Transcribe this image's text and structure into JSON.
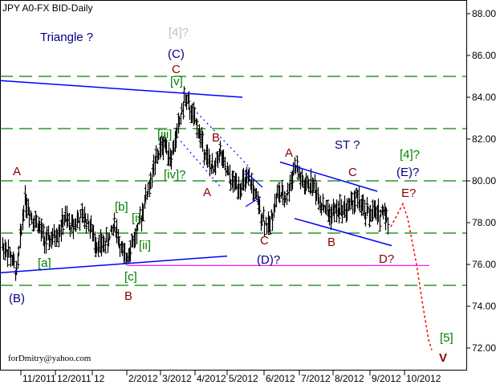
{
  "chart_data": {
    "type": "ohlc-line",
    "title": "JPY A0-FX BID-Daily",
    "watermark": "forDmitry@yahoo.com",
    "ylim": [
      71,
      89
    ],
    "y_ticks": [
      "88.00",
      "86.00",
      "84.00",
      "82.00",
      "80.00",
      "78.00",
      "76.00",
      "74.00",
      "72.00"
    ],
    "y_tick_values": [
      88,
      86,
      84,
      82,
      80,
      78,
      76,
      74,
      72
    ],
    "x_ticks": [
      "11/2011",
      "12/2011",
      "12",
      "2/2012",
      "3/2012",
      "4/2012",
      "5/2012",
      "6/2012",
      "7/2012",
      "8/2012",
      "9/2012",
      "10/2012"
    ],
    "grid": "horizontal dashed levels",
    "levels": [
      {
        "price": 85.0,
        "color": "#008000",
        "style": "dashed"
      },
      {
        "price": 82.5,
        "color": "#008000",
        "style": "dashed"
      },
      {
        "price": 80.0,
        "color": "#008000",
        "style": "dashed"
      },
      {
        "price": 77.5,
        "color": "#008000",
        "style": "dashed"
      },
      {
        "price": 75.0,
        "color": "#008000",
        "style": "dashed"
      },
      {
        "price": 75.95,
        "color": "#ff00ff",
        "style": "solid",
        "from": "2/2012",
        "to": "10/2012"
      }
    ],
    "price_path": [
      [
        "10/2011",
        77.3
      ],
      [
        "10/2011",
        77.0
      ],
      [
        "10/2011",
        76.6
      ],
      [
        "10/2011",
        75.6
      ],
      [
        "11/2011",
        79.2
      ],
      [
        "11/2011",
        78.3
      ],
      [
        "11/2011",
        77.9
      ],
      [
        "11/2011",
        77.1
      ],
      [
        "11/2011",
        77.2
      ],
      [
        "12/2011",
        77.6
      ],
      [
        "12/2011",
        78.2
      ],
      [
        "12/2011",
        77.8
      ],
      [
        "12/2011",
        78.1
      ],
      [
        "12/2011",
        78.3
      ],
      [
        "12/2011",
        77.9
      ],
      [
        "1/2012",
        77.1
      ],
      [
        "1/2012",
        76.9
      ],
      [
        "1/2012",
        77.0
      ],
      [
        "1/2012",
        77.3
      ],
      [
        "1/2012",
        78.0
      ],
      [
        "1/2012",
        77.0
      ],
      [
        "1/2012",
        76.2
      ],
      [
        "2/2012",
        76.9
      ],
      [
        "2/2012",
        77.5
      ],
      [
        "2/2012",
        78.9
      ],
      [
        "2/2012",
        80.0
      ],
      [
        "2/2012",
        81.2
      ],
      [
        "3/2012",
        81.9
      ],
      [
        "3/2012",
        81.1
      ],
      [
        "3/2012",
        82.5
      ],
      [
        "3/2012",
        84.0
      ],
      [
        "3/2012",
        83.2
      ],
      [
        "4/2012",
        82.5
      ],
      [
        "4/2012",
        81.7
      ],
      [
        "4/2012",
        80.9
      ],
      [
        "4/2012",
        80.4
      ],
      [
        "4/2012",
        81.5
      ],
      [
        "4/2012",
        80.6
      ],
      [
        "5/2012",
        79.9
      ],
      [
        "5/2012",
        79.8
      ],
      [
        "5/2012",
        80.0
      ],
      [
        "5/2012",
        78.6
      ],
      [
        "6/2012",
        77.7
      ],
      [
        "6/2012",
        79.4
      ],
      [
        "6/2012",
        79.2
      ],
      [
        "6/2012",
        80.8
      ],
      [
        "7/2012",
        79.7
      ],
      [
        "7/2012",
        79.9
      ],
      [
        "7/2012",
        79.0
      ],
      [
        "7/2012",
        78.4
      ],
      [
        "8/2012",
        78.6
      ],
      [
        "8/2012",
        78.7
      ],
      [
        "8/2012",
        79.2
      ],
      [
        "8/2012",
        78.4
      ],
      [
        "9/2012",
        78.5
      ],
      [
        "9/2012",
        78.3
      ],
      [
        "9/2012",
        78.7
      ],
      [
        "9/2012",
        77.4
      ],
      [
        "9/2012",
        77.1
      ],
      [
        "9/2012",
        78.3
      ]
    ],
    "trendlines": [
      {
        "name": "triangle-upper",
        "color": "#0000ff",
        "style": "solid",
        "from": [
          "10/2011",
          84.8
        ],
        "to": [
          "5/2012",
          84.0
        ]
      },
      {
        "name": "triangle-lower",
        "color": "#0000ff",
        "style": "solid",
        "from": [
          "10/2011",
          75.6
        ],
        "to": [
          "5/2012",
          76.4
        ]
      },
      {
        "name": "channel-upper",
        "color": "#0000ff",
        "style": "dotted",
        "from": [
          "3/2012",
          83.6
        ],
        "to": [
          "5/2012",
          80.6
        ]
      },
      {
        "name": "channel-lower",
        "color": "#0000ff",
        "style": "dotted",
        "from": [
          "3/2012",
          81.9
        ],
        "to": [
          "4/2012",
          79.7
        ]
      },
      {
        "name": "st-upper",
        "color": "#0000ff",
        "style": "solid",
        "from": [
          "6/2012",
          80.9
        ],
        "to": [
          "9/2012",
          79.5
        ]
      },
      {
        "name": "st-lower",
        "color": "#0000ff",
        "style": "solid",
        "from": [
          "6/2012",
          78.2
        ],
        "to": [
          "9/2012",
          76.9
        ]
      }
    ],
    "forecast": {
      "color": "#ff0000",
      "style": "dotted",
      "points": [
        [
          "9/2012",
          77.8
        ],
        [
          "9/2012",
          78.9
        ],
        [
          "10/2012",
          78.2
        ],
        [
          "10/2012",
          76.0
        ],
        [
          "10/2012",
          74.0
        ],
        [
          "10/2012",
          72.4
        ],
        [
          "10/2012",
          71.9
        ]
      ]
    },
    "annotations": [
      {
        "text": "Triangle ?",
        "color": "#000080"
      },
      {
        "text": "[4]?",
        "color": "#c0c0c0"
      },
      {
        "text": "(C)",
        "color": "#000080"
      },
      {
        "text": "C",
        "color": "#8b0000"
      },
      {
        "text": "[v]",
        "color": "#008000"
      },
      {
        "text": "[iii]",
        "color": "#008000"
      },
      {
        "text": "[iv]?",
        "color": "#008000"
      },
      {
        "text": "A",
        "color": "#8b0000"
      },
      {
        "text": "B",
        "color": "#8b0000"
      },
      {
        "text": "A",
        "color": "#8b0000"
      },
      {
        "text": "[b]",
        "color": "#008000"
      },
      {
        "text": "[i]",
        "color": "#008000"
      },
      {
        "text": "[ii]",
        "color": "#008000"
      },
      {
        "text": "[a]",
        "color": "#008000"
      },
      {
        "text": "[c]",
        "color": "#008000"
      },
      {
        "text": "B",
        "color": "#8b0000"
      },
      {
        "text": "(B)",
        "color": "#000080"
      },
      {
        "text": "C",
        "color": "#8b0000"
      },
      {
        "text": "(D)?",
        "color": "#000080"
      },
      {
        "text": "A",
        "color": "#8b0000"
      },
      {
        "text": "ST ?",
        "color": "#000080"
      },
      {
        "text": "C",
        "color": "#8b0000"
      },
      {
        "text": "B",
        "color": "#8b0000"
      },
      {
        "text": "D?",
        "color": "#8b0000"
      },
      {
        "text": "[4]?",
        "color": "#008000"
      },
      {
        "text": "(E)?",
        "color": "#000080"
      },
      {
        "text": "E?",
        "color": "#8b0000"
      },
      {
        "text": "[5]",
        "color": "#008000"
      },
      {
        "text": "V",
        "color": "#8b0000"
      }
    ]
  }
}
